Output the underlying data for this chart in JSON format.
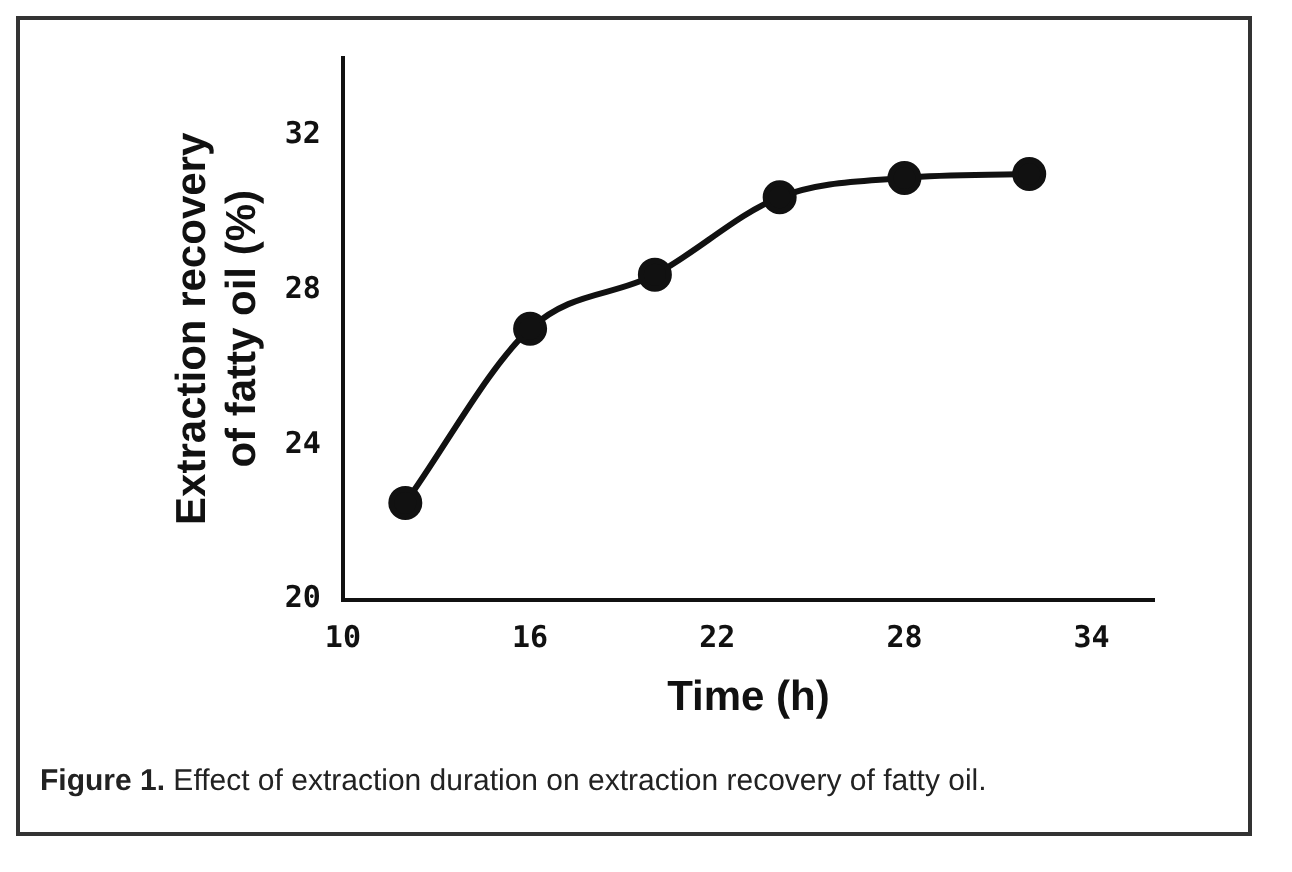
{
  "chart_data": {
    "type": "line",
    "xlabel": "Time (h)",
    "ylabel": "Extraction recovery of fatty oil (%)",
    "x": [
      12,
      16,
      20,
      24,
      28,
      32
    ],
    "series": [
      {
        "color": "#111111",
        "values": [
          22.5,
          27.0,
          28.4,
          30.4,
          30.9,
          31.0
        ]
      }
    ],
    "xlim": [
      10,
      36
    ],
    "xticks": [
      10,
      16,
      22,
      28,
      34
    ],
    "ylim": [
      20,
      34
    ],
    "yticks": [
      20,
      24,
      28,
      32
    ],
    "marker": "circle",
    "line_style": "solid",
    "grid": false,
    "legend": false,
    "annotations": [
      "Figure 1. Effect of extraction duration on extraction recovery of fatty oil."
    ]
  }
}
